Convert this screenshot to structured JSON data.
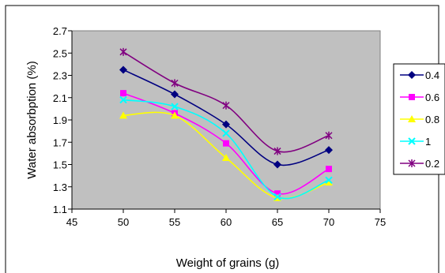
{
  "chart_data": {
    "type": "line",
    "title": "",
    "xlabel": "Weight of grains (g)",
    "ylabel": "Water absorbption (%)",
    "xlim": [
      45,
      75
    ],
    "ylim": [
      1.1,
      2.7
    ],
    "x_ticks": [
      "45",
      "50",
      "55",
      "60",
      "65",
      "70",
      "75"
    ],
    "y_ticks": [
      "1.1",
      "1.3",
      "1.5",
      "1.7",
      "1.9",
      "2.1",
      "2.3",
      "2.5",
      "2.7"
    ],
    "grid": false,
    "plot_background": "#c0c0c0",
    "smooth": true,
    "legend_position": "right",
    "series": [
      {
        "name": "0.4",
        "color": "#000080",
        "marker": "diamond",
        "x": [
          50,
          55,
          60,
          65,
          70
        ],
        "y": [
          2.35,
          2.13,
          1.86,
          1.5,
          1.63
        ]
      },
      {
        "name": "0.6",
        "color": "#ff00ff",
        "marker": "square",
        "x": [
          50,
          55,
          60,
          65,
          70
        ],
        "y": [
          2.14,
          1.96,
          1.69,
          1.24,
          1.46
        ]
      },
      {
        "name": "0.8",
        "color": "#ffff00",
        "marker": "triangle",
        "x": [
          50,
          55,
          60,
          65,
          70
        ],
        "y": [
          1.94,
          1.94,
          1.56,
          1.2,
          1.34
        ]
      },
      {
        "name": "1",
        "color": "#00ffff",
        "marker": "x",
        "x": [
          50,
          55,
          60,
          65,
          70
        ],
        "y": [
          2.08,
          2.02,
          1.78,
          1.21,
          1.36
        ]
      },
      {
        "name": "0.2",
        "color": "#800080",
        "marker": "star",
        "x": [
          50,
          55,
          60,
          65,
          70
        ],
        "y": [
          2.51,
          2.23,
          2.03,
          1.62,
          1.76
        ]
      }
    ]
  }
}
